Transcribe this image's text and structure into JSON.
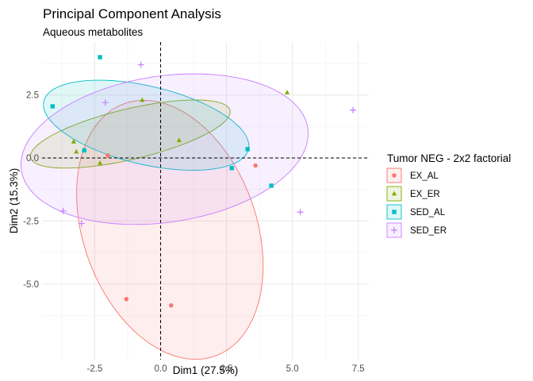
{
  "chart_data": {
    "type": "scatter",
    "title": "Principal Component Analysis",
    "subtitle": "Aqueous metabolites",
    "xlabel": "Dim1 (27.5%)",
    "ylabel": "Dim2 (15.3%)",
    "xlim": [
      -4.5,
      7.9
    ],
    "ylim": [
      -8.0,
      4.6
    ],
    "xticks": [
      -2.5,
      0.0,
      2.5,
      5.0,
      7.5
    ],
    "xtick_labels": [
      "-2.5",
      "0.0",
      "2.5",
      "5.0",
      "7.5"
    ],
    "yticks": [
      -5.0,
      -2.5,
      0.0,
      2.5
    ],
    "ytick_labels": [
      "-5.0",
      "-2.5",
      "0.0",
      "2.5"
    ],
    "grid": true,
    "reference_lines": {
      "x": 0,
      "y": 0,
      "style": "dashed"
    },
    "legend": {
      "title": "Tumor NEG - 2x2 factorial",
      "placement": "right"
    },
    "series": [
      {
        "name": "EX_AL",
        "color": "#F8766D",
        "shape": "circle",
        "points": [
          [
            -2.0,
            0.1
          ],
          [
            3.6,
            -0.3
          ],
          [
            -1.3,
            -5.6
          ],
          [
            0.4,
            -5.85
          ]
        ],
        "ellipse": {
          "cx": 0.35,
          "cy": -2.85,
          "rx": 3.3,
          "ry": 5.3,
          "angle_deg": 18
        }
      },
      {
        "name": "EX_ER",
        "color": "#7CAE00",
        "shape": "triangle",
        "points": [
          [
            -3.2,
            0.25
          ],
          [
            -3.3,
            0.65
          ],
          [
            -2.3,
            -0.2
          ],
          [
            -0.7,
            2.3
          ],
          [
            0.7,
            0.7
          ],
          [
            4.8,
            2.6
          ]
        ],
        "ellipse": {
          "cx": -1.15,
          "cy": 0.95,
          "rx": 3.9,
          "ry": 1.0,
          "angle_deg": 14
        }
      },
      {
        "name": "SED_AL",
        "color": "#00BFC4",
        "shape": "square",
        "points": [
          [
            -4.1,
            2.05
          ],
          [
            -2.3,
            4.0
          ],
          [
            -2.9,
            0.3
          ],
          [
            3.3,
            0.35
          ],
          [
            2.7,
            -0.4
          ],
          [
            4.2,
            -1.1
          ]
        ],
        "ellipse": {
          "cx": -0.55,
          "cy": 1.3,
          "rx": 4.0,
          "ry": 1.55,
          "angle_deg": -14
        }
      },
      {
        "name": "SED_ER",
        "color": "#C77CFF",
        "shape": "plus",
        "points": [
          [
            -0.75,
            3.7
          ],
          [
            -2.1,
            2.2
          ],
          [
            7.3,
            1.9
          ],
          [
            -3.7,
            -2.1
          ],
          [
            -3.0,
            -2.6
          ],
          [
            5.3,
            -2.15
          ]
        ],
        "ellipse": {
          "cx": 0.15,
          "cy": 0.35,
          "rx": 5.5,
          "ry": 2.9,
          "angle_deg": 9
        }
      }
    ]
  }
}
